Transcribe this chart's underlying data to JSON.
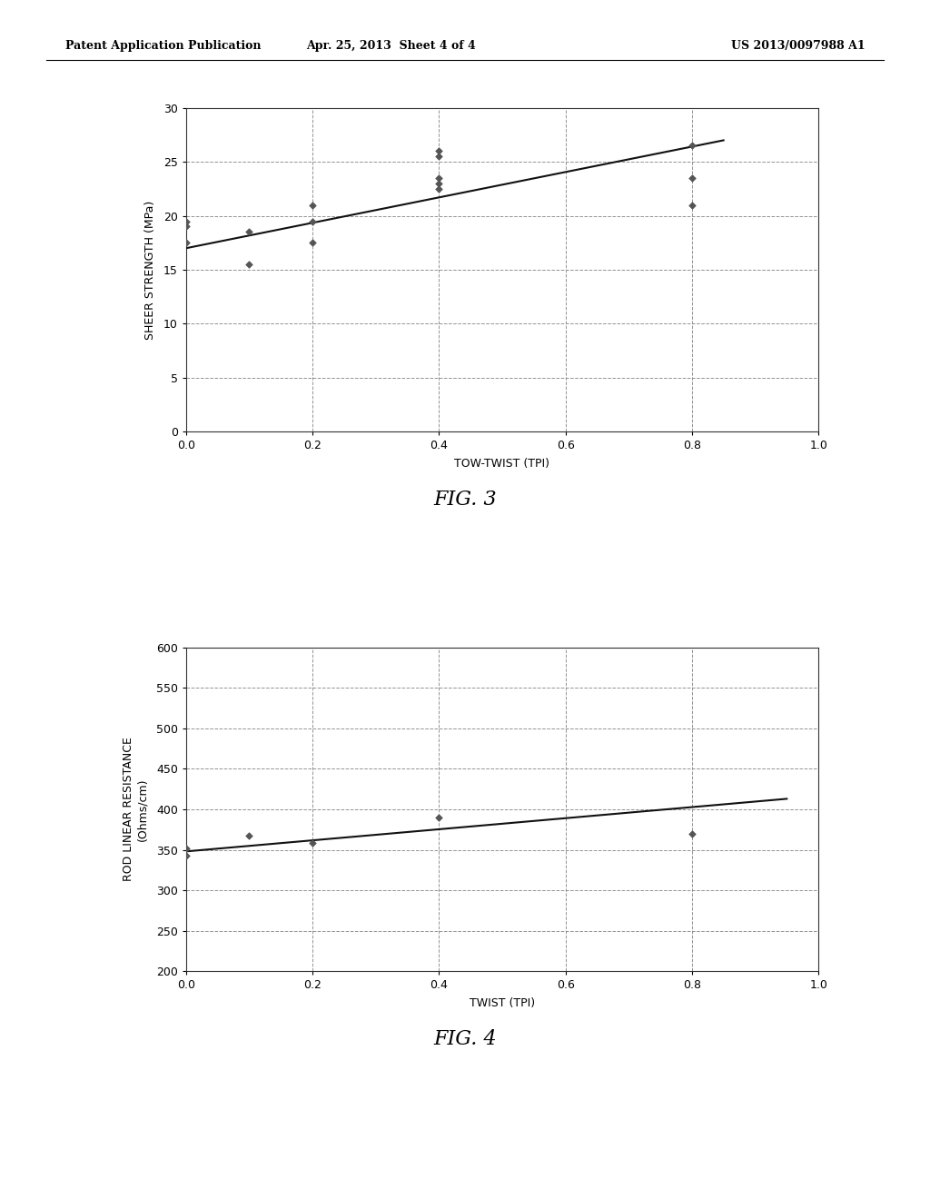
{
  "header_left": "Patent Application Publication",
  "header_center": "Apr. 25, 2013  Sheet 4 of 4",
  "header_right": "US 2013/0097988 A1",
  "fig3": {
    "title": "FIG. 3",
    "xlabel": "TOW-TWIST (TPI)",
    "ylabel": "SHEER STRENGTH (MPa)",
    "xlim": [
      0.0,
      1.0
    ],
    "ylim": [
      0,
      30
    ],
    "xticks": [
      0.0,
      0.2,
      0.4,
      0.6,
      0.8,
      1.0
    ],
    "yticks": [
      0,
      5,
      10,
      15,
      20,
      25,
      30
    ],
    "scatter_x": [
      0.0,
      0.0,
      0.0,
      0.1,
      0.1,
      0.2,
      0.2,
      0.2,
      0.4,
      0.4,
      0.4,
      0.4,
      0.4,
      0.8,
      0.8,
      0.8
    ],
    "scatter_y": [
      17.5,
      19.0,
      19.5,
      15.5,
      18.5,
      17.5,
      19.5,
      21.0,
      25.5,
      23.5,
      23.0,
      22.5,
      26.0,
      23.5,
      21.0,
      26.5
    ],
    "trendline_x": [
      0.0,
      0.85
    ],
    "trendline_y": [
      17.0,
      27.0
    ]
  },
  "fig4": {
    "title": "FIG. 4",
    "xlabel": "TWIST (TPI)",
    "ylabel1": "ROD LINEAR RESISTANCE",
    "ylabel2": "(Ohms/cm)",
    "xlim": [
      0.0,
      1.0
    ],
    "ylim": [
      200,
      600
    ],
    "xticks": [
      0.0,
      0.2,
      0.4,
      0.6,
      0.8,
      1.0
    ],
    "yticks": [
      200,
      250,
      300,
      350,
      400,
      450,
      500,
      550,
      600
    ],
    "scatter_x": [
      0.0,
      0.0,
      0.1,
      0.2,
      0.4,
      0.8
    ],
    "scatter_y": [
      343,
      352,
      368,
      358,
      390,
      370
    ],
    "trendline_x": [
      0.0,
      0.95
    ],
    "trendline_y": [
      348,
      413
    ]
  },
  "background_color": "#ffffff",
  "plot_bg_color": "#ffffff",
  "grid_color": "#888888",
  "scatter_color": "#555555",
  "line_color": "#111111",
  "header_fontsize": 9,
  "axis_fontsize": 9,
  "label_fontsize": 9,
  "caption_fontsize": 16
}
